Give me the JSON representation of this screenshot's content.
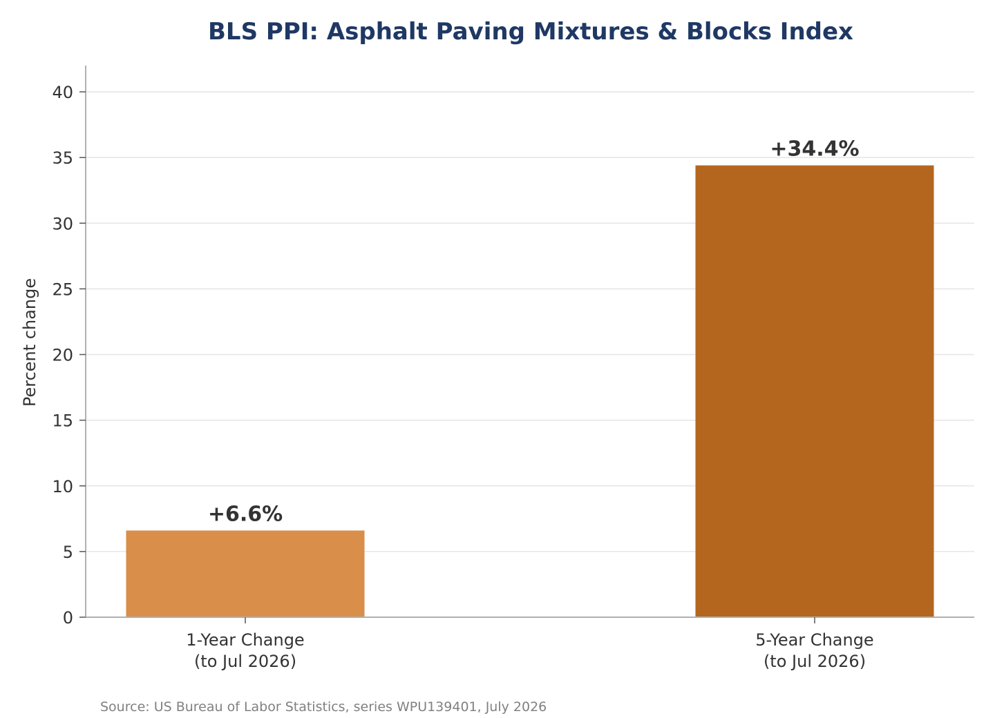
{
  "chart_data": {
    "type": "bar",
    "title": "BLS PPI: Asphalt Paving Mixtures & Blocks Index",
    "ylabel": "Percent change",
    "xlabel": "",
    "categories": [
      [
        "1-Year Change",
        "(to Jul 2026)"
      ],
      [
        "5-Year Change",
        "(to Jul 2026)"
      ]
    ],
    "values": [
      6.6,
      34.4
    ],
    "data_labels": [
      "+6.6%",
      "+34.4%"
    ],
    "bar_colors": [
      "#d98e4a",
      "#b4661f"
    ],
    "ylim": [
      0,
      42
    ],
    "yticks": [
      0,
      5,
      10,
      15,
      20,
      25,
      30,
      35,
      40
    ],
    "grid": "horizontal",
    "legend": "none"
  },
  "source": "Source: US Bureau of Labor Statistics, series WPU139401, July 2026",
  "colors": {
    "title": "#1f3864",
    "axis": "#b0b0b0",
    "grid": "#e6e6e6",
    "text": "#333333",
    "source": "#808080"
  }
}
